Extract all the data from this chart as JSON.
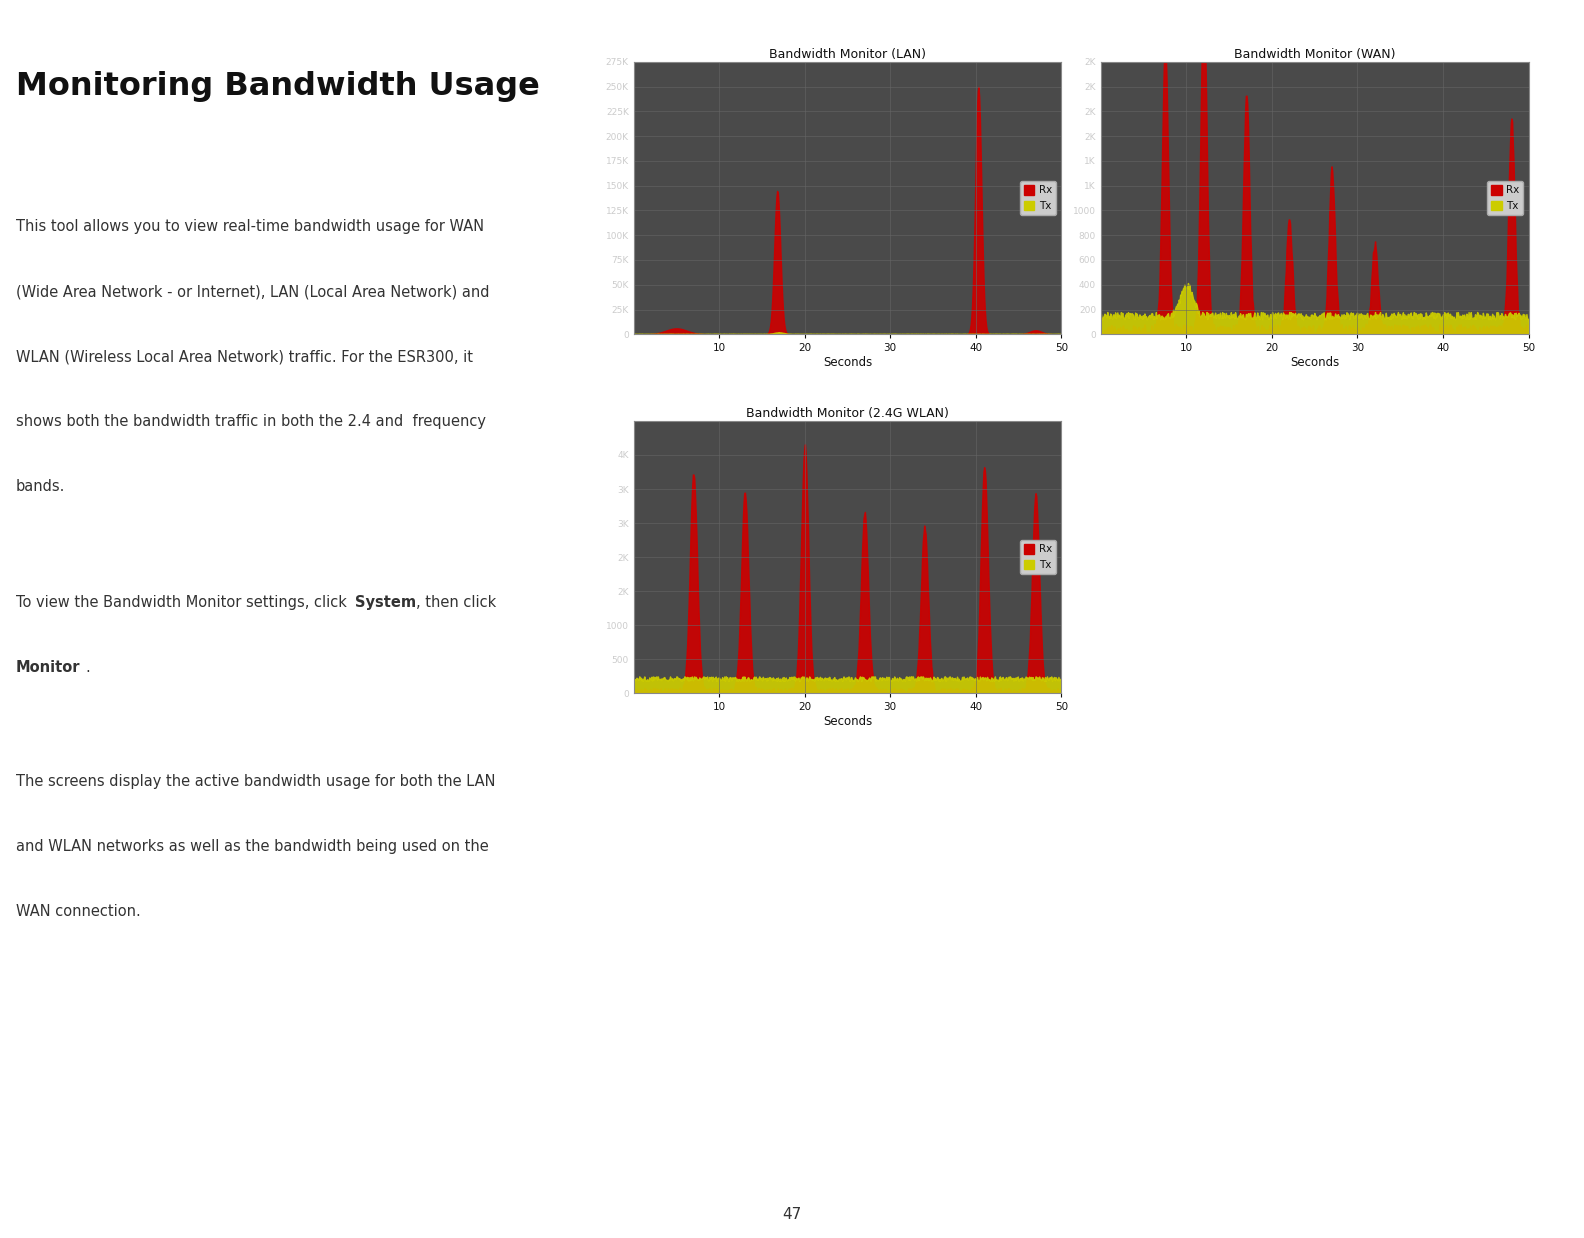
{
  "title": "Monitoring Bandwidth Usage",
  "page_number": "47",
  "bg_color": "#ffffff",
  "chart_bg": "#4a4a4a",
  "grid_color": "#666666",
  "rx_color": "#cc0000",
  "tx_color": "#cccc00",
  "para1": [
    "This tool allows you to view real-time bandwidth usage for WAN",
    "(Wide Area Network - or Internet), LAN (Local Area Network) and",
    "WLAN (Wireless Local Area Network) traffic. For the ESR300, it",
    "shows both the bandwidth traffic in both the 2.4 and  frequency",
    "bands."
  ],
  "para3": [
    "The screens display the active bandwidth usage for both the LAN",
    "and WLAN networks as well as the bandwidth being used on the",
    "WAN connection."
  ],
  "lan_title": "Bandwidth Monitor (LAN)",
  "wan_title": "Bandwidth Monitor (WAN)",
  "wlan_title": "Bandwidth Monitor (2.4G WLAN)",
  "x_ticks": [
    10,
    20,
    30,
    40,
    50
  ],
  "xlabel": "Seconds",
  "lan_yticks_v": [
    0,
    25000,
    50000,
    75000,
    100000,
    125000,
    150000,
    175000,
    200000,
    225000,
    250000,
    275000
  ],
  "lan_yticks_l": [
    "0",
    "25K",
    "50K",
    "75K",
    "100K",
    "125K",
    "150K",
    "175K",
    "200K",
    "225K",
    "250K",
    "275K"
  ],
  "wan_yticks_v": [
    0,
    200,
    400,
    600,
    800,
    1000,
    1200,
    1400,
    1600,
    1800,
    2000,
    2200
  ],
  "wan_yticks_l": [
    "0",
    "200",
    "400",
    "600",
    "800",
    "1000",
    "1K",
    "1K",
    "2K",
    "2K",
    "2K",
    "2K"
  ],
  "wlan_yticks_v": [
    0,
    500,
    1000,
    1500,
    2000,
    2500,
    3000,
    3500,
    4000
  ],
  "wlan_yticks_l": [
    "0",
    "500",
    "1000",
    "2K",
    "2K",
    "3K",
    "3K",
    "4K",
    ""
  ]
}
